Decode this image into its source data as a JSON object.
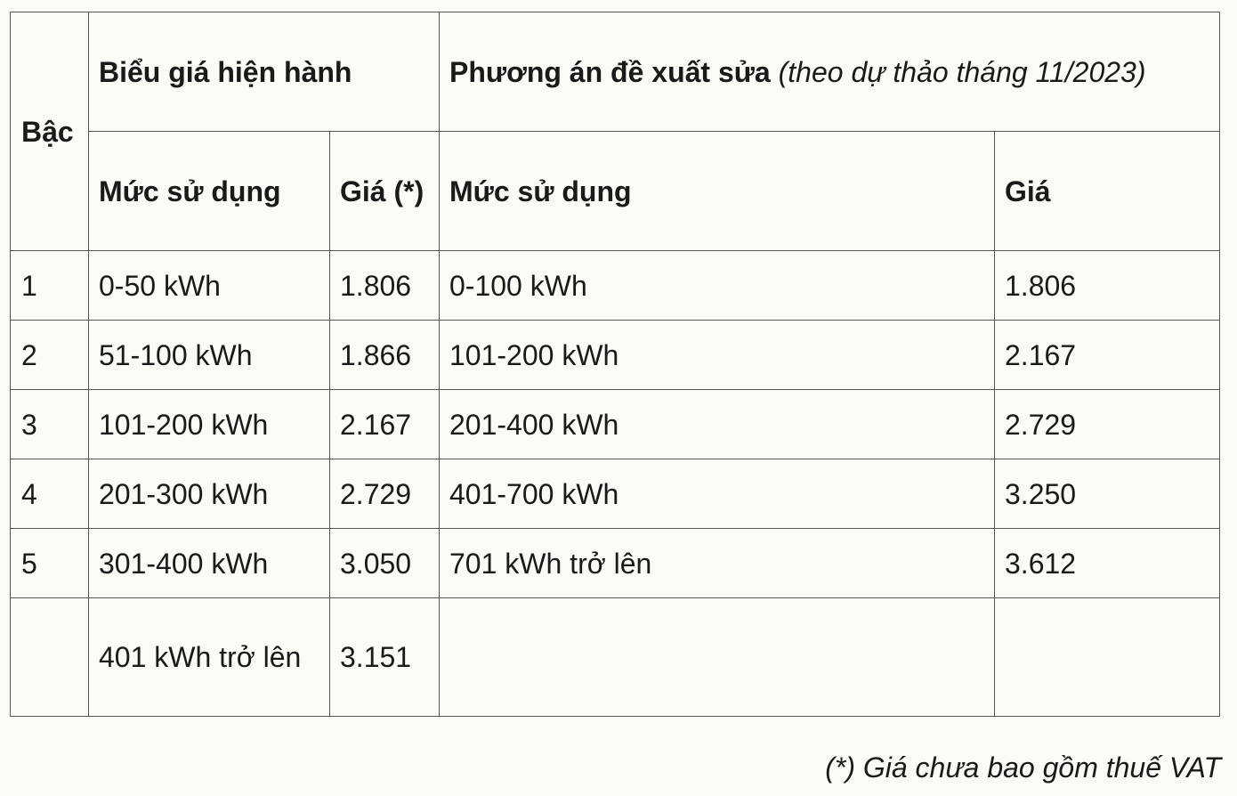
{
  "table": {
    "header": {
      "tier": "Bậc",
      "current_group": "Biểu giá hiện hành",
      "proposed_group": "Phương án đề xuất sửa",
      "proposed_note": "(theo dự thảo tháng 11/2023)",
      "current_usage": "Mức sử dụng",
      "current_price": "Giá (*)",
      "proposed_usage": "Mức sử dụng",
      "proposed_price": "Giá"
    },
    "rows": [
      {
        "tier": "1",
        "current_usage": "0-50 kWh",
        "current_price": "1.806",
        "proposed_usage": "0-100 kWh",
        "proposed_price": "1.806"
      },
      {
        "tier": "2",
        "current_usage": "51-100 kWh",
        "current_price": "1.866",
        "proposed_usage": "101-200 kWh",
        "proposed_price": "2.167"
      },
      {
        "tier": "3",
        "current_usage": "101-200 kWh",
        "current_price": "2.167",
        "proposed_usage": "201-400 kWh",
        "proposed_price": "2.729"
      },
      {
        "tier": "4",
        "current_usage": "201-300 kWh",
        "current_price": "2.729",
        "proposed_usage": "401-700 kWh",
        "proposed_price": "3.250"
      },
      {
        "tier": "5",
        "current_usage": "301-400 kWh",
        "current_price": "3.050",
        "proposed_usage": "701 kWh trở lên",
        "proposed_price": "3.612"
      },
      {
        "current_usage": "401 kWh trở lên",
        "current_price": "3.151"
      }
    ],
    "footnote": "(*) Giá chưa bao gồm thuế VAT"
  }
}
